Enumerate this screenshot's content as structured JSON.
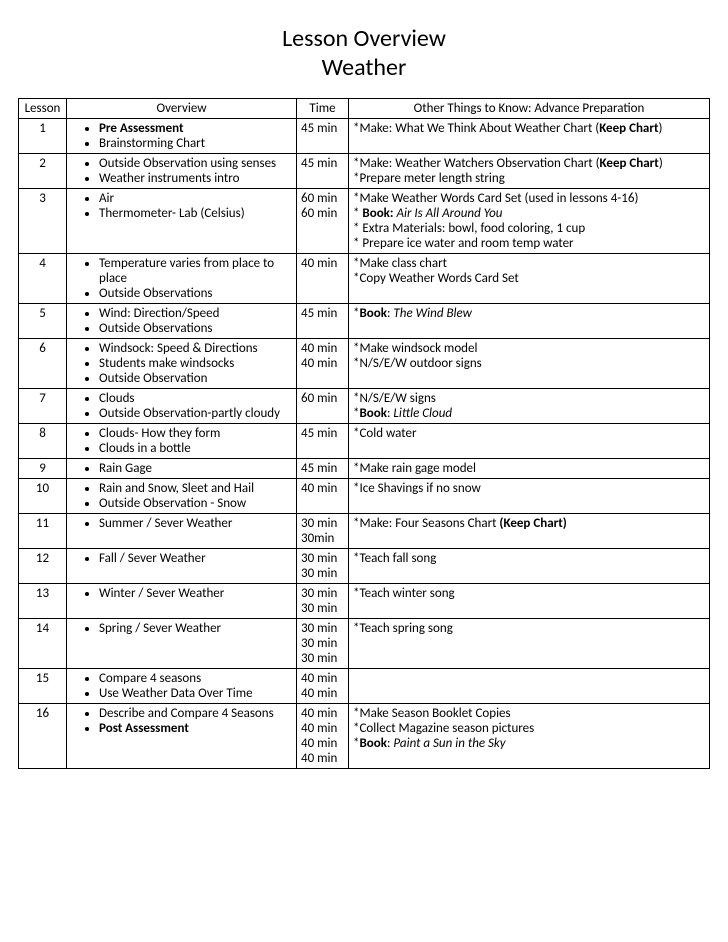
{
  "title": "Lesson Overview",
  "subtitle": "Weather",
  "headers": {
    "lesson": "Lesson",
    "overview": "Overview",
    "time": "Time",
    "prep": "Other Things to Know:   Advance Preparation"
  },
  "rows": [
    {
      "num": "1",
      "overview": [
        {
          "text": "Pre Assessment",
          "bold": true
        },
        {
          "text": "Brainstorming Chart"
        }
      ],
      "time": [
        "45 min"
      ],
      "prep": [
        {
          "segments": [
            {
              "t": "*Make: What We Think About Weather Chart ("
            },
            {
              "t": "Keep Chart",
              "b": true
            },
            {
              "t": ")"
            }
          ]
        }
      ]
    },
    {
      "num": "2",
      "overview": [
        {
          "text": "Outside Observation using senses"
        },
        {
          "text": "Weather instruments intro"
        }
      ],
      "time": [
        "45 min"
      ],
      "prep": [
        {
          "segments": [
            {
              "t": "*Make: Weather Watchers Observation Chart ("
            },
            {
              "t": "Keep Chart",
              "b": true
            },
            {
              "t": ")"
            }
          ]
        },
        {
          "segments": [
            {
              "t": "*Prepare meter length string"
            }
          ]
        }
      ]
    },
    {
      "num": "3",
      "overview": [
        {
          "text": "Air"
        },
        {
          "text": "Thermometer- Lab (Celsius)"
        }
      ],
      "time": [
        "60 min",
        "60 min"
      ],
      "prep": [
        {
          "segments": [
            {
              "t": "*Make Weather Words Card Set (used in lessons 4-16)"
            }
          ]
        },
        {
          "segments": [
            {
              "t": "* "
            },
            {
              "t": "Book:",
              "b": true
            },
            {
              "t": " "
            },
            {
              "t": "Air Is All Around You",
              "i": true
            }
          ]
        },
        {
          "segments": [
            {
              "t": "* Extra Materials: bowl, food coloring, 1 cup"
            }
          ]
        },
        {
          "segments": [
            {
              "t": "* Prepare ice water and room temp water"
            }
          ]
        }
      ]
    },
    {
      "num": "4",
      "overview": [
        {
          "text": "Temperature varies from place to place"
        },
        {
          "text": "Outside Observations"
        }
      ],
      "time": [
        "40 min"
      ],
      "prep": [
        {
          "segments": [
            {
              "t": "*Make class chart"
            }
          ]
        },
        {
          "segments": [
            {
              "t": "*Copy Weather Words Card Set"
            }
          ]
        }
      ]
    },
    {
      "num": "5",
      "overview": [
        {
          "text": "Wind: Direction/Speed"
        },
        {
          "text": "Outside Observations"
        }
      ],
      "time": [
        "45 min"
      ],
      "prep": [
        {
          "segments": [
            {
              "t": "*"
            },
            {
              "t": "Book",
              "b": true
            },
            {
              "t": ": "
            },
            {
              "t": "The Wind Blew",
              "i": true
            }
          ]
        }
      ]
    },
    {
      "num": "6",
      "overview": [
        {
          "text": "Windsock: Speed & Directions"
        },
        {
          "text": "Students make windsocks"
        },
        {
          "text": "Outside Observation"
        }
      ],
      "time": [
        "40 min",
        "40 min"
      ],
      "prep": [
        {
          "segments": [
            {
              "t": "*Make windsock model"
            }
          ]
        },
        {
          "segments": [
            {
              "t": "*N/S/E/W outdoor signs"
            }
          ]
        }
      ]
    },
    {
      "num": "7",
      "overview": [
        {
          "text": "Clouds"
        },
        {
          "text": "Outside Observation-partly cloudy"
        }
      ],
      "time": [
        "60 min"
      ],
      "prep": [
        {
          "segments": [
            {
              "t": "*N/S/E/W signs"
            }
          ]
        },
        {
          "segments": [
            {
              "t": "*"
            },
            {
              "t": "Book",
              "b": true
            },
            {
              "t": ": "
            },
            {
              "t": "Little Cloud",
              "i": true
            }
          ]
        }
      ]
    },
    {
      "num": "8",
      "overview": [
        {
          "text": "Clouds- How they form"
        },
        {
          "text": "Clouds in a bottle"
        }
      ],
      "time": [
        "45 min"
      ],
      "prep": [
        {
          "segments": [
            {
              "t": "*Cold water"
            }
          ]
        }
      ]
    },
    {
      "num": "9",
      "overview": [
        {
          "text": "Rain Gage"
        }
      ],
      "time": [
        "45 min"
      ],
      "prep": [
        {
          "segments": [
            {
              "t": "*Make rain gage model"
            }
          ]
        }
      ]
    },
    {
      "num": "10",
      "overview": [
        {
          "text": "Rain and Snow, Sleet and Hail"
        },
        {
          "text": "Outside Observation - Snow"
        }
      ],
      "time": [
        "40 min"
      ],
      "prep": [
        {
          "segments": [
            {
              "t": "*Ice Shavings if no snow"
            }
          ]
        }
      ]
    },
    {
      "num": "11",
      "overview": [
        {
          "text": "Summer / Sever Weather"
        }
      ],
      "time": [
        "30 min",
        "30min"
      ],
      "prep": [
        {
          "segments": [
            {
              "t": "*Make: Four Seasons Chart "
            },
            {
              "t": "(Keep Chart)",
              "b": true
            }
          ]
        }
      ]
    },
    {
      "num": "12",
      "overview": [
        {
          "text": "Fall / Sever Weather"
        }
      ],
      "time": [
        "30 min",
        "30 min"
      ],
      "prep": [
        {
          "segments": [
            {
              "t": "*Teach fall song"
            }
          ]
        }
      ]
    },
    {
      "num": "13",
      "overview": [
        {
          "text": "Winter / Sever Weather"
        }
      ],
      "time": [
        "30 min",
        "30 min"
      ],
      "prep": [
        {
          "segments": [
            {
              "t": "*Teach winter song"
            }
          ]
        }
      ]
    },
    {
      "num": "14",
      "overview": [
        {
          "text": "Spring / Sever Weather"
        }
      ],
      "time": [
        "30 min",
        "30 min",
        "30 min"
      ],
      "prep": [
        {
          "segments": [
            {
              "t": "*Teach spring song"
            }
          ]
        }
      ]
    },
    {
      "num": "15",
      "overview": [
        {
          "text": "Compare 4 seasons"
        },
        {
          "text": "Use Weather Data Over Time"
        }
      ],
      "time": [
        "40 min",
        "40 min"
      ],
      "prep": []
    },
    {
      "num": "16",
      "overview": [
        {
          "text": "Describe and Compare 4 Seasons"
        },
        {
          "text": "Post Assessment",
          "bold": true
        }
      ],
      "time": [
        "40 min",
        "40 min",
        "40 min",
        "40 min"
      ],
      "prep": [
        {
          "segments": [
            {
              "t": "*Make Season Booklet Copies"
            }
          ]
        },
        {
          "segments": [
            {
              "t": "*Collect Magazine season pictures"
            }
          ]
        },
        {
          "segments": [
            {
              "t": "*"
            },
            {
              "t": "Book",
              "b": true
            },
            {
              "t": ": "
            },
            {
              "t": "Paint a Sun in the Sky",
              "i": true
            }
          ]
        }
      ]
    }
  ]
}
